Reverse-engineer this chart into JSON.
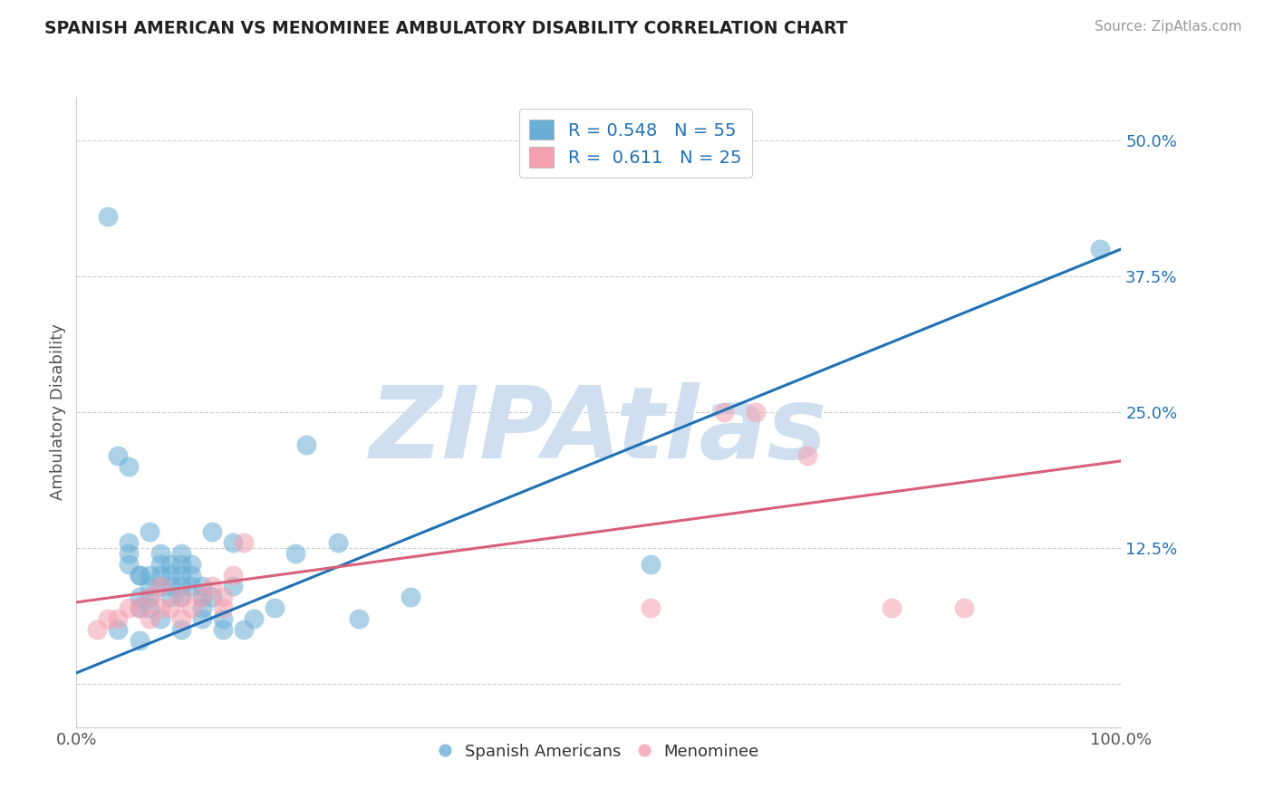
{
  "title": "SPANISH AMERICAN VS MENOMINEE AMBULATORY DISABILITY CORRELATION CHART",
  "source": "Source: ZipAtlas.com",
  "ylabel": "Ambulatory Disability",
  "xlim": [
    0.0,
    1.0
  ],
  "ylim": [
    -0.04,
    0.54
  ],
  "yticks": [
    0.0,
    0.125,
    0.25,
    0.375,
    0.5
  ],
  "yticklabels": [
    "",
    "12.5%",
    "25.0%",
    "37.5%",
    "50.0%"
  ],
  "blue_R": 0.548,
  "blue_N": 55,
  "pink_R": 0.611,
  "pink_N": 25,
  "blue_color": "#6aaed6",
  "pink_color": "#f4a0b0",
  "blue_line_color": "#2171b5",
  "pink_line_color": "#d9607a",
  "watermark": "ZIPAtlas",
  "watermark_color": "#d0dff0",
  "legend_label_blue": "Spanish Americans",
  "legend_label_pink": "Menominee",
  "blue_scatter_x": [
    0.03,
    0.04,
    0.04,
    0.05,
    0.05,
    0.05,
    0.05,
    0.06,
    0.06,
    0.06,
    0.06,
    0.06,
    0.07,
    0.07,
    0.07,
    0.07,
    0.07,
    0.08,
    0.08,
    0.08,
    0.08,
    0.08,
    0.09,
    0.09,
    0.09,
    0.09,
    0.1,
    0.1,
    0.1,
    0.1,
    0.1,
    0.1,
    0.11,
    0.11,
    0.11,
    0.12,
    0.12,
    0.12,
    0.12,
    0.13,
    0.13,
    0.14,
    0.14,
    0.15,
    0.15,
    0.16,
    0.17,
    0.19,
    0.21,
    0.22,
    0.25,
    0.27,
    0.32,
    0.55,
    0.98
  ],
  "blue_scatter_y": [
    0.43,
    0.21,
    0.05,
    0.11,
    0.12,
    0.13,
    0.2,
    0.04,
    0.07,
    0.08,
    0.1,
    0.1,
    0.07,
    0.08,
    0.09,
    0.1,
    0.14,
    0.06,
    0.09,
    0.1,
    0.11,
    0.12,
    0.08,
    0.09,
    0.1,
    0.11,
    0.05,
    0.08,
    0.09,
    0.1,
    0.11,
    0.12,
    0.09,
    0.1,
    0.11,
    0.06,
    0.07,
    0.08,
    0.09,
    0.08,
    0.14,
    0.05,
    0.06,
    0.09,
    0.13,
    0.05,
    0.06,
    0.07,
    0.12,
    0.22,
    0.13,
    0.06,
    0.08,
    0.11,
    0.4
  ],
  "pink_scatter_x": [
    0.02,
    0.03,
    0.04,
    0.05,
    0.06,
    0.07,
    0.07,
    0.08,
    0.08,
    0.09,
    0.1,
    0.1,
    0.11,
    0.12,
    0.13,
    0.14,
    0.14,
    0.15,
    0.16,
    0.55,
    0.62,
    0.65,
    0.7,
    0.78,
    0.85
  ],
  "pink_scatter_y": [
    0.05,
    0.06,
    0.06,
    0.07,
    0.07,
    0.06,
    0.08,
    0.07,
    0.09,
    0.07,
    0.06,
    0.08,
    0.07,
    0.08,
    0.09,
    0.07,
    0.08,
    0.1,
    0.13,
    0.07,
    0.25,
    0.25,
    0.21,
    0.07,
    0.07
  ],
  "blue_line_x": [
    0.0,
    1.0
  ],
  "blue_line_y": [
    0.01,
    0.4
  ],
  "pink_line_x": [
    0.0,
    1.0
  ],
  "pink_line_y": [
    0.075,
    0.205
  ]
}
